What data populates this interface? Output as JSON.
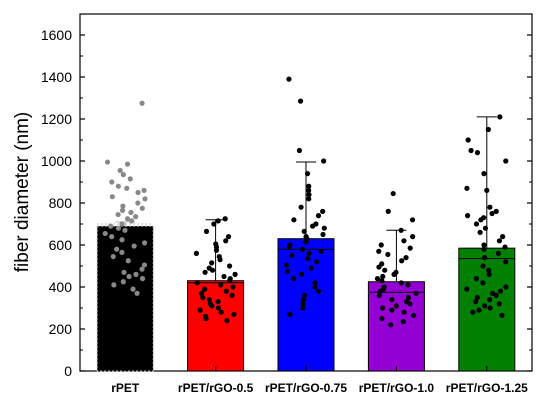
{
  "chart_data": {
    "type": "bar",
    "ylabel": "fiber diameter (nm)",
    "xlabel": "",
    "ylim": [
      0,
      1700
    ],
    "yticks": [
      0,
      200,
      400,
      600,
      800,
      1000,
      1200,
      1400,
      1600
    ],
    "grid": false,
    "categories": [
      "rPET",
      "rPET/rGO-0.5",
      "rPET/rGO-0.75",
      "rPET/rGO-1.0",
      "rPET/rGO-1.25"
    ],
    "values": [
      690,
      430,
      630,
      425,
      585
    ],
    "medians": [
      700,
      420,
      580,
      375,
      535
    ],
    "whisker_high": [
      710,
      720,
      995,
      670,
      1210
    ],
    "bar_colors": [
      "#000000",
      "#ff0000",
      "#0000ff",
      "#9400d3",
      "#008000"
    ],
    "point_colors": [
      "#888888",
      "#000000",
      "#000000",
      "#000000",
      "#000000"
    ],
    "points": [
      [
        1275,
        995,
        985,
        955,
        935,
        915,
        900,
        880,
        870,
        860,
        850,
        830,
        820,
        800,
        785,
        775,
        765,
        755,
        745,
        735,
        725,
        715,
        700,
        690,
        680,
        670,
        655,
        640,
        625,
        610,
        595,
        580,
        565,
        545,
        525,
        505,
        485,
        470,
        460,
        450,
        440,
        425,
        410,
        390,
        370
      ],
      [
        725,
        715,
        700,
        665,
        640,
        620,
        605,
        590,
        575,
        560,
        545,
        530,
        515,
        500,
        490,
        480,
        470,
        460,
        450,
        440,
        430,
        420,
        410,
        400,
        390,
        380,
        370,
        360,
        350,
        340,
        330,
        320,
        310,
        300,
        290,
        280,
        270,
        260,
        250,
        240
      ],
      [
        1390,
        1285,
        1050,
        1000,
        940,
        880,
        860,
        840,
        820,
        780,
        760,
        740,
        720,
        700,
        690,
        680,
        665,
        650,
        640,
        630,
        615,
        600,
        590,
        580,
        570,
        560,
        550,
        535,
        520,
        505,
        490,
        475,
        460,
        440,
        420,
        400,
        380,
        360,
        340,
        320,
        300,
        270
      ],
      [
        845,
        760,
        720,
        670,
        640,
        620,
        600,
        585,
        570,
        555,
        540,
        525,
        510,
        495,
        480,
        470,
        460,
        450,
        440,
        430,
        420,
        410,
        400,
        390,
        380,
        370,
        360,
        350,
        340,
        330,
        320,
        310,
        300,
        290,
        280,
        265,
        250,
        235,
        220
      ],
      [
        1210,
        1150,
        1100,
        1050,
        1040,
        1000,
        940,
        870,
        860,
        780,
        760,
        750,
        740,
        730,
        720,
        700,
        680,
        660,
        640,
        620,
        600,
        590,
        580,
        560,
        540,
        520,
        500,
        480,
        460,
        440,
        420,
        400,
        390,
        380,
        370,
        360,
        350,
        340,
        330,
        320,
        310,
        300,
        290,
        280,
        265
      ]
    ]
  }
}
